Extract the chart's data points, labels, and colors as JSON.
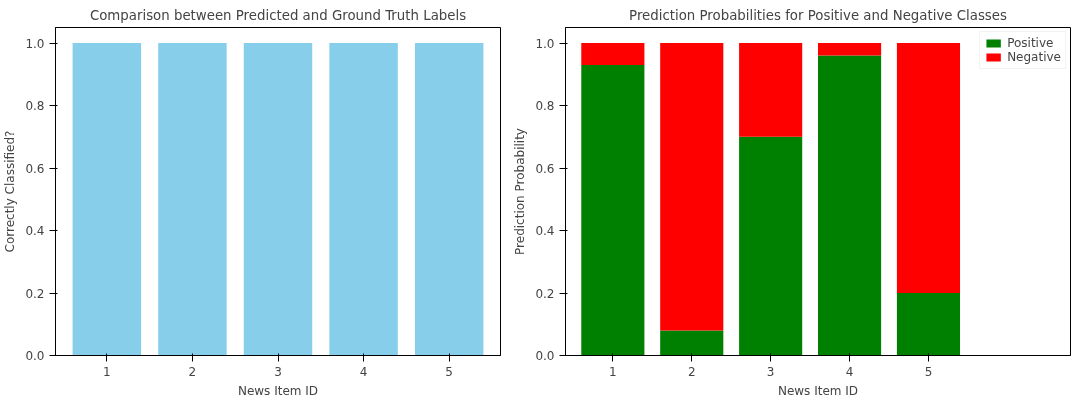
{
  "chart_data": [
    {
      "type": "bar",
      "title": "Comparison between Predicted and Ground Truth Labels",
      "xlabel": "News Item ID",
      "ylabel": "Correctly Classified?",
      "categories": [
        "1",
        "2",
        "3",
        "4",
        "5"
      ],
      "values": [
        1,
        1,
        1,
        1,
        1
      ],
      "color": "#87ceeb",
      "ylim": [
        0,
        1.05
      ],
      "yticks": [
        {
          "value": 0,
          "label": "0.0"
        },
        {
          "value": 0.2,
          "label": "0.2"
        },
        {
          "value": 0.4,
          "label": "0.4"
        },
        {
          "value": 0.6,
          "label": "0.6"
        },
        {
          "value": 0.8,
          "label": "0.8"
        },
        {
          "value": 1,
          "label": "1.0"
        }
      ]
    },
    {
      "type": "bar",
      "stacked": true,
      "title": "Prediction Probabilities for Positive and Negative Classes",
      "xlabel": "News Item ID",
      "ylabel": "Prediction Probability",
      "categories": [
        "1",
        "2",
        "3",
        "4",
        "5"
      ],
      "series": [
        {
          "name": "Positive",
          "color": "#008000",
          "values": [
            0.93,
            0.08,
            0.7,
            0.96,
            0.2
          ]
        },
        {
          "name": "Negative",
          "color": "#ff0000",
          "values": [
            0.07,
            0.92,
            0.3,
            0.04,
            0.8
          ]
        }
      ],
      "ylim": [
        0,
        1.05
      ],
      "yticks": [
        {
          "value": 0,
          "label": "0.0"
        },
        {
          "value": 0.2,
          "label": "0.2"
        },
        {
          "value": 0.4,
          "label": "0.4"
        },
        {
          "value": 0.6,
          "label": "0.6"
        },
        {
          "value": 0.8,
          "label": "0.8"
        },
        {
          "value": 1,
          "label": "1.0"
        }
      ],
      "legend": "top right"
    }
  ]
}
